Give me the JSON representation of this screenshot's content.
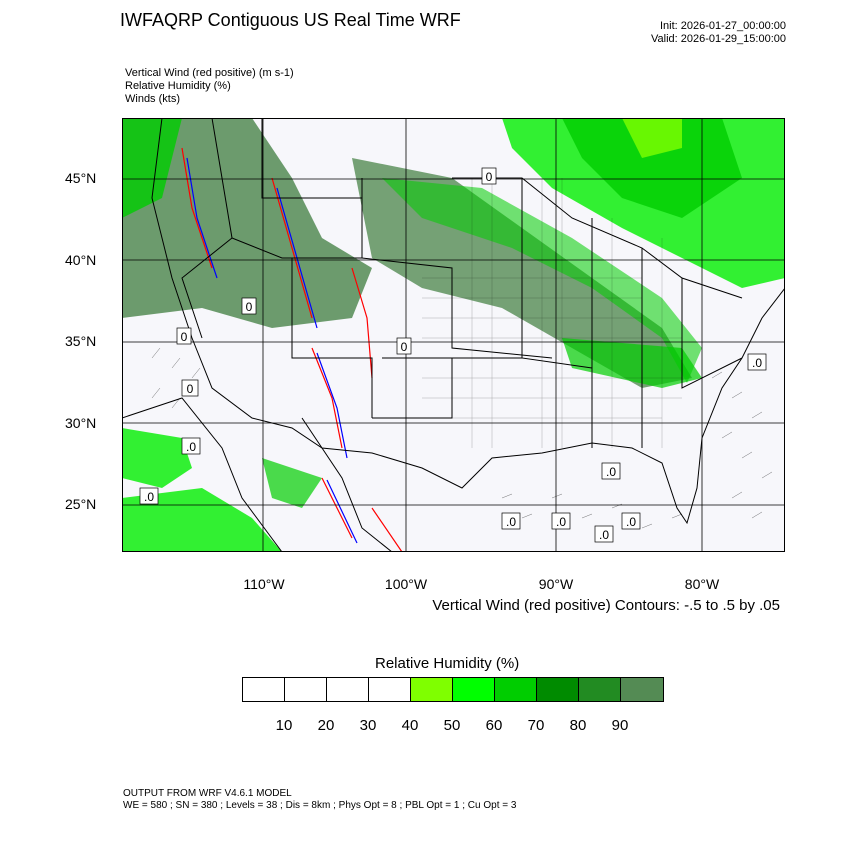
{
  "header": {
    "title": "IWFAQRP Contiguous US Real Time WRF",
    "init": "Init: 2026-01-27_00:00:00",
    "valid": "Valid: 2026-01-29_15:00:00"
  },
  "fields": [
    "Vertical Wind (red positive)   (m s-1)",
    "Relative Humidity   (%)",
    "Winds   (kts)"
  ],
  "map": {
    "lat_labels": [
      "45°N",
      "40°N",
      "35°N",
      "30°N",
      "25°N"
    ],
    "lon_labels": [
      "110°W",
      "100°W",
      "90°W",
      "80°W"
    ],
    "contour_label": "0",
    "contour_label_alt": ".0",
    "colors": {
      "land_green_light": "#7cfc00",
      "land_green": "#00ee00",
      "mid_green": "#00c400",
      "dark_green": "#008b00",
      "darker_green": "#228b22",
      "darkest_green": "#548b54",
      "positive": "#ff0000",
      "negative": "#0000ff"
    }
  },
  "contours_text": "Vertical Wind (red positive) Contours: -.5 to .5 by .05",
  "colorbar": {
    "title": "Relative Humidity  (%)",
    "colors": [
      "#ffffff",
      "#ffffff",
      "#ffffff",
      "#ffffff",
      "#7fff00",
      "#00ff00",
      "#00cd00",
      "#008b00",
      "#228b22",
      "#548b54"
    ],
    "labels": [
      "10",
      "20",
      "30",
      "40",
      "50",
      "60",
      "70",
      "80",
      "90"
    ]
  },
  "footer": {
    "line1": "OUTPUT FROM WRF V4.6.1 MODEL",
    "line2": "WE = 580 ; SN = 380 ; Levels = 38 ; Dis = 8km ; Phys Opt = 8 ; PBL Opt = 1 ; Cu Opt = 3"
  }
}
